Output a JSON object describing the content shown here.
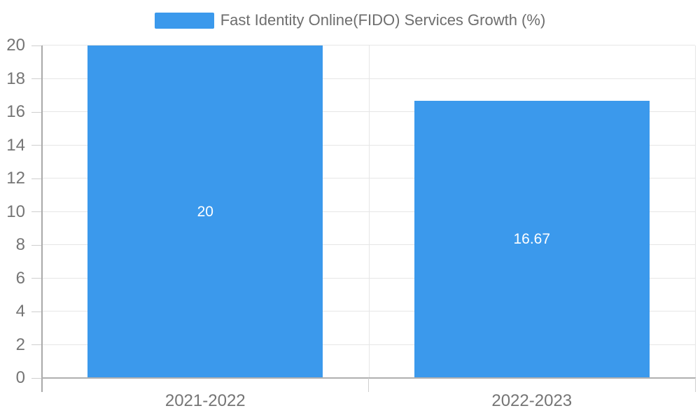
{
  "chart_data": {
    "type": "bar",
    "title": "Fast Identity Online(FIDO) Services Growth (%)",
    "categories": [
      "2021-2022",
      "2022-2023"
    ],
    "values": [
      20,
      16.67
    ],
    "value_labels": [
      "20",
      "16.67"
    ],
    "xlabel": "",
    "ylabel": "",
    "ylim": [
      0,
      20
    ],
    "yticks": [
      0,
      2,
      4,
      6,
      8,
      10,
      12,
      14,
      16,
      18,
      20
    ],
    "grid": true,
    "legend_position": "top"
  },
  "colors": {
    "bar": "#3b99ec",
    "grid": "#e6e6e6",
    "axis": "#a9a9a9",
    "tick": "#cfcfcf",
    "label": "#757575",
    "legend_text": "#6e6e6e",
    "value_label": "#ffffff",
    "background": "#ffffff"
  }
}
